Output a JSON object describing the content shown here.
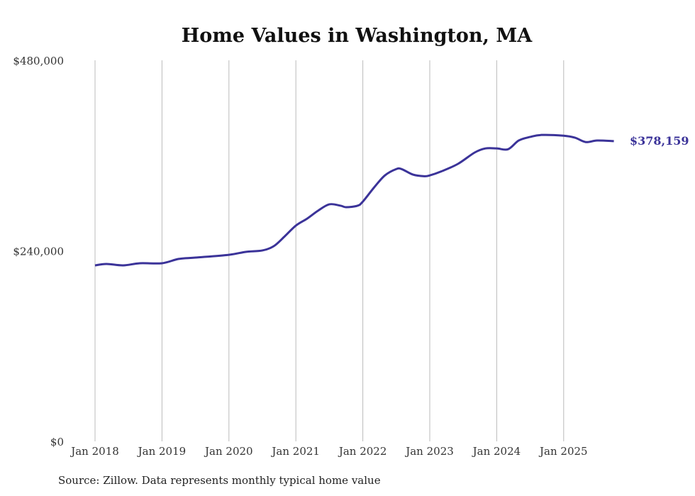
{
  "chart_data": {
    "type": "line",
    "title": "Home Values in Washington, MA",
    "xlabel": "",
    "ylabel": "",
    "ylim": [
      0,
      480000
    ],
    "y_ticks": [
      0,
      240000,
      480000
    ],
    "y_tick_labels": [
      "$0",
      "$240,000",
      "$480,000"
    ],
    "x_tick_labels": [
      "Jan 2018",
      "Jan 2019",
      "Jan 2020",
      "Jan 2021",
      "Jan 2022",
      "Jan 2023",
      "Jan 2024",
      "Jan 2025"
    ],
    "x_tick_years": [
      2018,
      2019,
      2020,
      2021,
      2022,
      2023,
      2024,
      2025
    ],
    "grid": "vertical",
    "line_color": "#3b3399",
    "series": [
      {
        "name": "Typical home value",
        "x": [
          2018.0,
          2018.17,
          2018.42,
          2018.67,
          2019.0,
          2019.25,
          2019.5,
          2020.0,
          2020.25,
          2020.5,
          2020.67,
          2020.83,
          2021.0,
          2021.17,
          2021.33,
          2021.5,
          2021.67,
          2021.75,
          2021.92,
          2022.0,
          2022.17,
          2022.33,
          2022.5,
          2022.58,
          2022.75,
          2022.92,
          2023.0,
          2023.17,
          2023.42,
          2023.67,
          2023.83,
          2024.0,
          2024.17,
          2024.33,
          2024.5,
          2024.67,
          2025.0,
          2025.17,
          2025.33,
          2025.5,
          2025.75
        ],
        "values": [
          221700,
          223500,
          221700,
          224400,
          224400,
          229800,
          231500,
          235000,
          238700,
          240500,
          245900,
          258000,
          271800,
          280700,
          290500,
          298600,
          296800,
          295000,
          296800,
          302000,
          320000,
          335000,
          343000,
          343000,
          336000,
          334000,
          335000,
          340000,
          349500,
          363800,
          369000,
          369000,
          368000,
          379000,
          383500,
          386000,
          385000,
          382500,
          377000,
          379000,
          378159
        ]
      }
    ],
    "end_label": "$378,159"
  },
  "source": "Source: Zillow. Data represents monthly typical home value"
}
